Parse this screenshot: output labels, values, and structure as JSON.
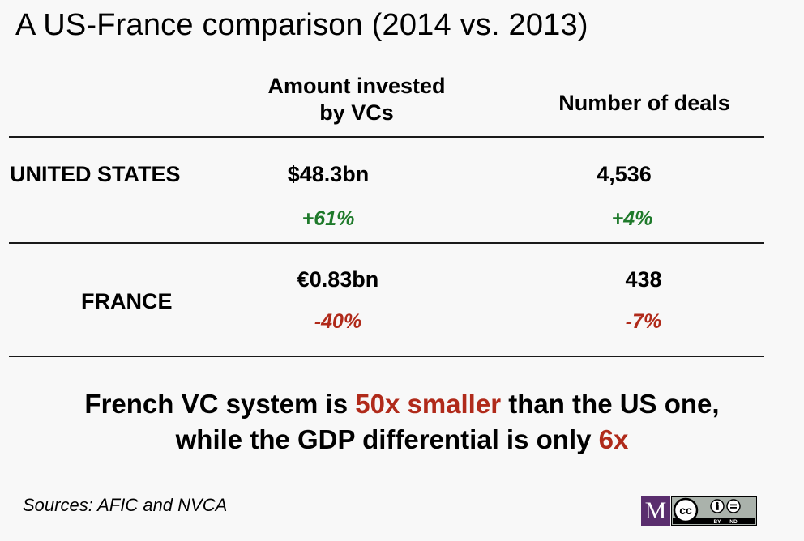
{
  "title": "A US-France comparison (2014 vs. 2013)",
  "columns": {
    "amount_line1": "Amount invested",
    "amount_line2": "by VCs",
    "deals": "Number of deals"
  },
  "rows": [
    {
      "country": "UNITED STATES",
      "amount": "$48.3bn",
      "amount_change": "+61%",
      "deals": "4,536",
      "deals_change": "+4%"
    },
    {
      "country": "FRANCE",
      "amount": "€0.83bn",
      "amount_change": "-40%",
      "deals": "438",
      "deals_change": "-7%"
    }
  ],
  "conclusion": {
    "line1_a": "French VC system is ",
    "line1_highlight": "50x smaller",
    "line1_b": " than the US one,",
    "line2_a": "while the GDP differential is only ",
    "line2_highlight": "6x"
  },
  "sources": "Sources: AFIC and NVCA",
  "logo": {
    "letter": "M",
    "cc_text": "cc",
    "by_label": "BY",
    "nd_label": "ND"
  },
  "colors": {
    "positive": "#1f7a2b",
    "negative": "#b02a1a",
    "highlight": "#b02a1a",
    "logo_bg": "#5a2e6e"
  }
}
